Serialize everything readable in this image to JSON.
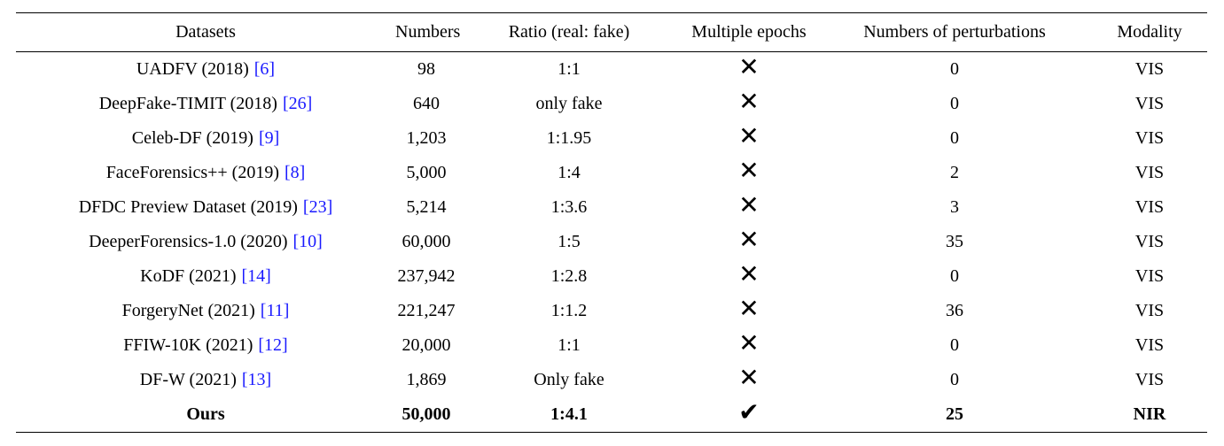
{
  "table": {
    "header": [
      "Datasets",
      "Numbers",
      "Ratio (real: fake)",
      "Multiple epochs",
      "Numbers of perturbations",
      "Modality"
    ],
    "rows": [
      {
        "dataset": "UADFV (2018)",
        "ref": "[6]",
        "numbers": "98",
        "ratio": "1:1",
        "epochs": "✕",
        "perturbations": "0",
        "modality": "VIS"
      },
      {
        "dataset": "DeepFake-TIMIT (2018)",
        "ref": "[26]",
        "numbers": "640",
        "ratio": "only fake",
        "epochs": "✕",
        "perturbations": "0",
        "modality": "VIS"
      },
      {
        "dataset": "Celeb-DF (2019)",
        "ref": "[9]",
        "numbers": "1,203",
        "ratio": "1:1.95",
        "epochs": "✕",
        "perturbations": "0",
        "modality": "VIS"
      },
      {
        "dataset": "FaceForensics++ (2019)",
        "ref": "[8]",
        "numbers": "5,000",
        "ratio": "1:4",
        "epochs": "✕",
        "perturbations": "2",
        "modality": "VIS"
      },
      {
        "dataset": "DFDC Preview Dataset (2019)",
        "ref": "[23]",
        "numbers": "5,214",
        "ratio": "1:3.6",
        "epochs": "✕",
        "perturbations": "3",
        "modality": "VIS"
      },
      {
        "dataset": "DeeperForensics-1.0 (2020)",
        "ref": "[10]",
        "numbers": "60,000",
        "ratio": "1:5",
        "epochs": "✕",
        "perturbations": "35",
        "modality": "VIS"
      },
      {
        "dataset": "KoDF (2021)",
        "ref": "[14]",
        "numbers": "237,942",
        "ratio": "1:2.8",
        "epochs": "✕",
        "perturbations": "0",
        "modality": "VIS"
      },
      {
        "dataset": "ForgeryNet (2021)",
        "ref": "[11]",
        "numbers": "221,247",
        "ratio": "1:1.2",
        "epochs": "✕",
        "perturbations": "36",
        "modality": "VIS"
      },
      {
        "dataset": "FFIW-10K (2021)",
        "ref": "[12]",
        "numbers": "20,000",
        "ratio": "1:1",
        "epochs": "✕",
        "perturbations": "0",
        "modality": "VIS"
      },
      {
        "dataset": "DF-W (2021)",
        "ref": "[13]",
        "numbers": "1,869",
        "ratio": "Only fake",
        "epochs": "✕",
        "perturbations": "0",
        "modality": "VIS"
      },
      {
        "dataset": "Ours",
        "numbers": "50,000",
        "ratio": "1:4.1",
        "epochs": "✔",
        "perturbations": "25",
        "modality": "NIR",
        "bold": true
      }
    ]
  }
}
